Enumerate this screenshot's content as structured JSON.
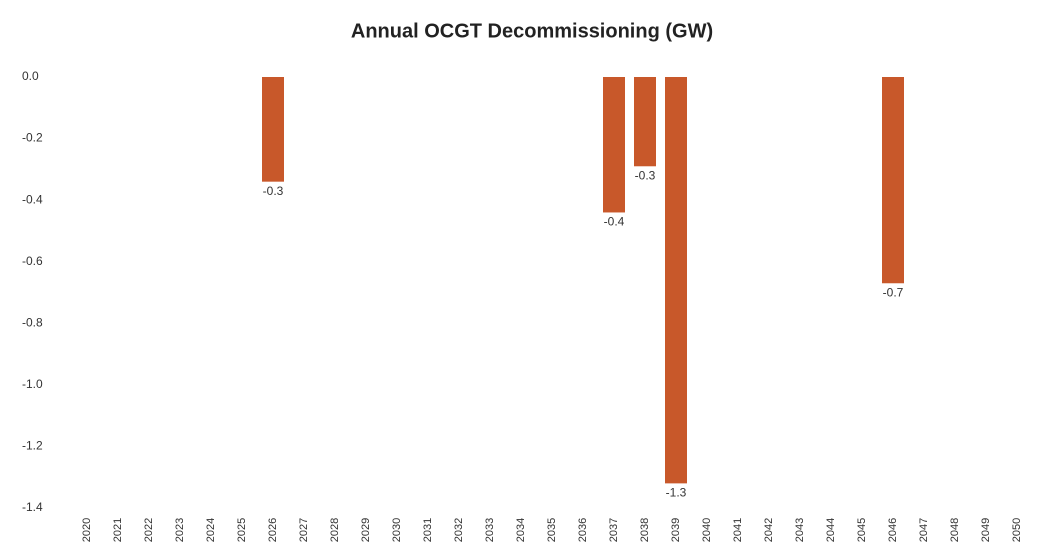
{
  "chart_data": {
    "type": "bar",
    "title": "Annual OCGT Decommissioning (GW)",
    "categories": [
      "2020",
      "2021",
      "2022",
      "2023",
      "2024",
      "2025",
      "2026",
      "2027",
      "2028",
      "2029",
      "2030",
      "2031",
      "2032",
      "2033",
      "2034",
      "2035",
      "2036",
      "2037",
      "2038",
      "2039",
      "2040",
      "2041",
      "2042",
      "2043",
      "2044",
      "2045",
      "2046",
      "2047",
      "2048",
      "2049",
      "2050"
    ],
    "values": [
      null,
      null,
      null,
      null,
      null,
      null,
      -0.34,
      null,
      null,
      null,
      null,
      null,
      null,
      null,
      null,
      null,
      null,
      -0.44,
      -0.29,
      -1.32,
      null,
      null,
      null,
      null,
      null,
      null,
      -0.67,
      null,
      null,
      null,
      null
    ],
    "value_labels": [
      null,
      null,
      null,
      null,
      null,
      null,
      "-0.3",
      null,
      null,
      null,
      null,
      null,
      null,
      null,
      null,
      null,
      null,
      "-0.4",
      "-0.3",
      "-1.3",
      null,
      null,
      null,
      null,
      null,
      null,
      "-0.7",
      null,
      null,
      null,
      null
    ],
    "color": "#c8582a",
    "ylim": [
      -1.4,
      0
    ],
    "yticks": [
      {
        "value": 0,
        "label": "0.0"
      },
      -0.2,
      -0.4,
      -0.6,
      -0.8,
      {
        "value": -1,
        "label": "-1.0"
      },
      -1.2,
      -1.4
    ],
    "grid": false
  }
}
